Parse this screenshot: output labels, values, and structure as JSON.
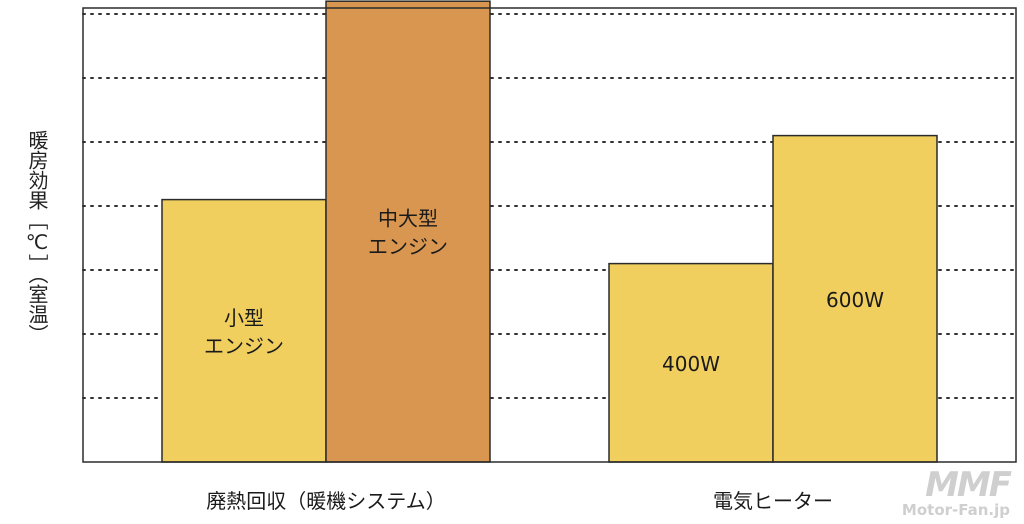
{
  "chart_data": {
    "type": "bar",
    "ylabel": "暖房効果［℃］（室温）",
    "ylim": [
      0,
      7
    ],
    "grid": true,
    "groups": [
      {
        "label": "廃熱回収（暖機システム）",
        "bars": [
          {
            "label": "小型エンジン",
            "label_lines": [
              "小型",
              "エンジン"
            ],
            "value": 4.1,
            "color": "#f0cf5f"
          },
          {
            "label": "中大型エンジン",
            "label_lines": [
              "中大型",
              "エンジン"
            ],
            "value": 7.2,
            "color": "#d89650"
          }
        ]
      },
      {
        "label": "電気ヒーター",
        "bars": [
          {
            "label": "400W",
            "label_lines": [
              "400W"
            ],
            "value": 3.1,
            "color": "#f0cf5f"
          },
          {
            "label": "600W",
            "label_lines": [
              "600W"
            ],
            "value": 5.1,
            "color": "#f0cf5f"
          }
        ]
      }
    ]
  },
  "watermark": {
    "logo": "MMF",
    "text": "Motor-Fan.jp"
  }
}
